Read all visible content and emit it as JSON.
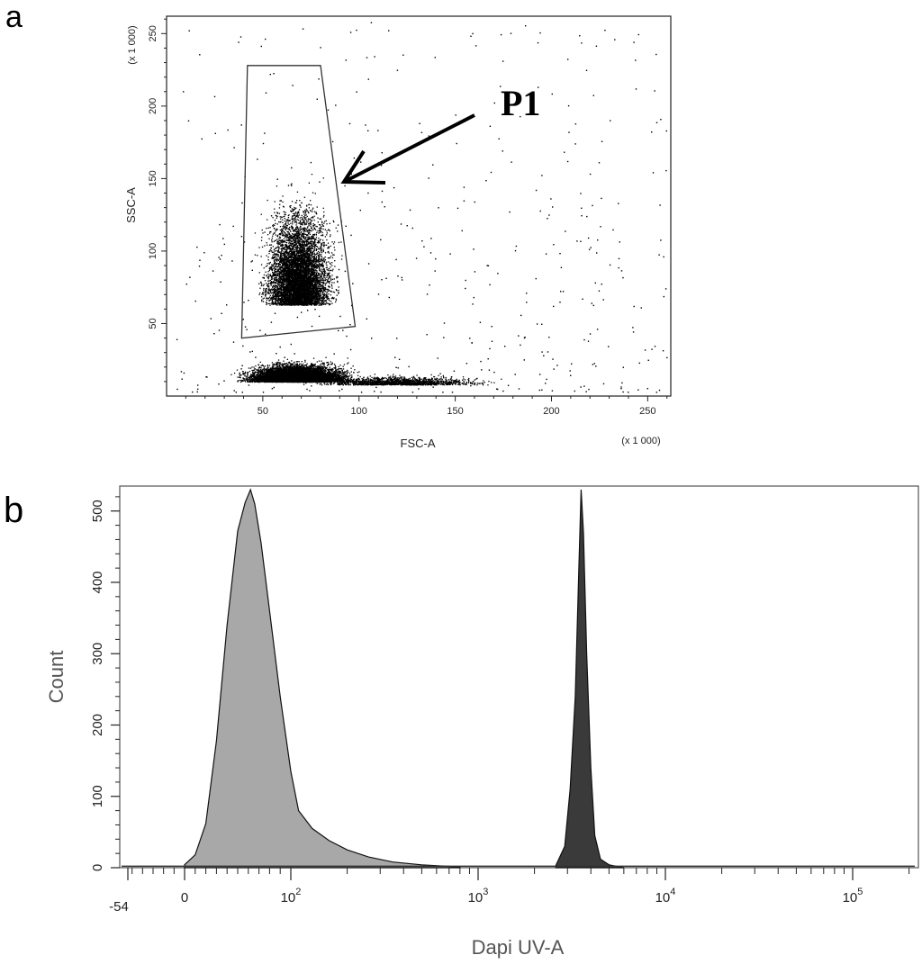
{
  "chart_data": [
    {
      "panel": "a",
      "type": "scatter",
      "xlabel": "FSC-A",
      "ylabel": "SSC-A",
      "x_scale_note": "(x 1 000)",
      "y_scale_note": "(x 1 000)",
      "xlim": [
        0,
        262
      ],
      "ylim": [
        0,
        262
      ],
      "x_ticks": [
        "50",
        "100",
        "150",
        "200",
        "250"
      ],
      "y_ticks": [
        "50",
        "100",
        "150",
        "200",
        "250"
      ],
      "x_tick_values": [
        50,
        100,
        150,
        200,
        250
      ],
      "y_tick_values": [
        50,
        100,
        150,
        200,
        250
      ],
      "gate": {
        "name": "P1",
        "polygon": [
          [
            42,
            228
          ],
          [
            80,
            228
          ],
          [
            98,
            48
          ],
          [
            39,
            40
          ]
        ]
      },
      "annotation": "P1",
      "populations": [
        {
          "center": [
            68,
            10
          ],
          "spread": [
            18,
            8
          ],
          "density": "very high"
        },
        {
          "center": [
            68,
            90
          ],
          "spread": [
            12,
            45
          ],
          "density": "high"
        },
        {
          "center": [
            120,
            8
          ],
          "spread": [
            30,
            4
          ],
          "density": "medium"
        }
      ],
      "colors": {
        "points": "#000000",
        "gate": "#333333"
      }
    },
    {
      "panel": "b",
      "type": "area",
      "xlabel": "Dapi UV-A",
      "ylabel": "Count",
      "x_scale": "log",
      "x_ticks": [
        "-54",
        "0",
        "10^2",
        "10^3",
        "10^4",
        "10^5"
      ],
      "y_ticks": [
        "0",
        "100",
        "200",
        "300",
        "400",
        "500"
      ],
      "ylim": [
        0,
        535
      ],
      "series": [
        {
          "color": "#a8a8a8",
          "points": [
            [
              0,
              4
            ],
            [
              10,
              18
            ],
            [
              20,
              62
            ],
            [
              30,
              178
            ],
            [
              40,
              340
            ],
            [
              50,
              472
            ],
            [
              57,
              512
            ],
            [
              62,
              530
            ],
            [
              66,
              510
            ],
            [
              72,
              455
            ],
            [
              80,
              360
            ],
            [
              90,
              240
            ],
            [
              100,
              135
            ],
            [
              110,
              80
            ],
            [
              130,
              55
            ],
            [
              160,
              38
            ],
            [
              200,
              25
            ],
            [
              260,
              15
            ],
            [
              350,
              8
            ],
            [
              500,
              4
            ],
            [
              800,
              1
            ]
          ]
        },
        {
          "color": "#3a3a3a",
          "points": [
            [
              2600,
              3
            ],
            [
              2900,
              30
            ],
            [
              3100,
              110
            ],
            [
              3300,
              240
            ],
            [
              3450,
              420
            ],
            [
              3550,
              530
            ],
            [
              3650,
              470
            ],
            [
              3800,
              300
            ],
            [
              4000,
              140
            ],
            [
              4200,
              45
            ],
            [
              4500,
              12
            ],
            [
              5000,
              4
            ],
            [
              6000,
              0
            ]
          ]
        }
      ]
    }
  ]
}
